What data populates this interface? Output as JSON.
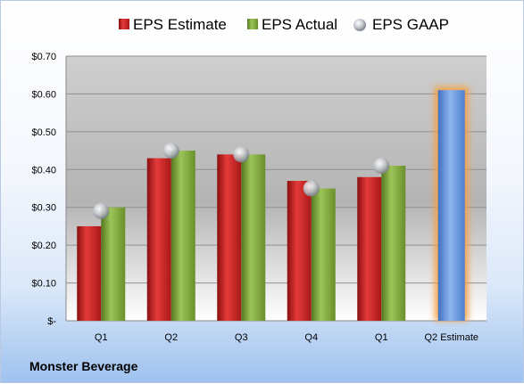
{
  "chart_data": {
    "type": "bar",
    "title": "",
    "xlabel": "",
    "ylabel": "",
    "categories": [
      "Q1",
      "Q2",
      "Q3",
      "Q4",
      "Q1",
      "Q2 Estimate"
    ],
    "series": [
      {
        "name": "EPS Estimate",
        "type": "bar",
        "values": [
          0.25,
          0.43,
          0.44,
          0.37,
          0.38,
          null
        ]
      },
      {
        "name": "EPS Actual",
        "type": "bar",
        "values": [
          0.3,
          0.45,
          0.44,
          0.35,
          0.41,
          null
        ]
      },
      {
        "name": "EPS GAAP",
        "type": "marker",
        "values": [
          0.29,
          0.45,
          0.44,
          0.35,
          0.41,
          null
        ]
      }
    ],
    "forecast": {
      "category": "Q2 Estimate",
      "value": 0.61,
      "highlight": "glow-orange"
    },
    "ylim": [
      0,
      0.7
    ],
    "yticks": [
      0,
      0.1,
      0.2,
      0.3,
      0.4,
      0.5,
      0.6,
      0.7
    ],
    "ytick_labels": [
      "$-",
      "$0.10",
      "$0.20",
      "$0.30",
      "$0.40",
      "$0.50",
      "$0.60",
      "$0.70"
    ],
    "grid": true,
    "legend_position": "top",
    "colors": {
      "estimate": "#cc1f1f",
      "actual": "#7ea73c",
      "gaap": "#b8bcc4",
      "forecast": "#6d9be0",
      "forecast_glow": "#f5a040"
    }
  },
  "footer": {
    "company": "Monster Beverage"
  }
}
